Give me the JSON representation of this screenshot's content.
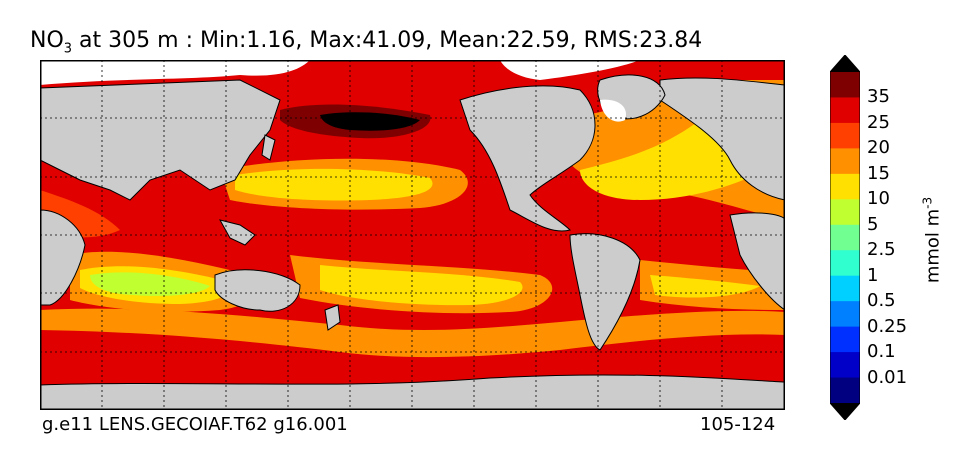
{
  "title": {
    "species": "NO",
    "species_sub": "3",
    "text": " at 305 m : Min:1.16, Max:41.09, Mean:22.59, RMS:23.84"
  },
  "footer": {
    "case_name": "g.e11 LENS.GECOIAF.T62 g16.001",
    "years": "105-124"
  },
  "colorbar": {
    "units": "mmol m",
    "units_exp": "-3",
    "labels": [
      "35",
      "25",
      "20",
      "15",
      "10",
      "5",
      "2.5",
      "1",
      "0.5",
      "0.25",
      "0.1",
      "0.01"
    ],
    "colors": [
      "#7f0000",
      "#e00000",
      "#ff4000",
      "#ff9000",
      "#ffe000",
      "#c0ff30",
      "#70ff90",
      "#30ffd0",
      "#00d0ff",
      "#0080ff",
      "#0030ff",
      "#0000c8",
      "#000080"
    ],
    "top_arrow": "#000000",
    "bottom_arrow": "#000000"
  },
  "map": {
    "land_color": "#cccccc",
    "ice_color": "#ffffff"
  }
}
